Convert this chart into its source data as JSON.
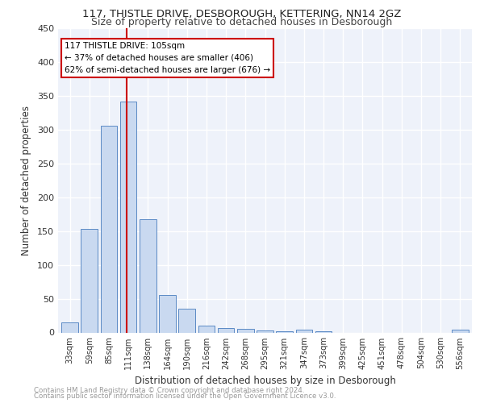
{
  "title1": "117, THISTLE DRIVE, DESBOROUGH, KETTERING, NN14 2GZ",
  "title2": "Size of property relative to detached houses in Desborough",
  "xlabel": "Distribution of detached houses by size in Desborough",
  "ylabel": "Number of detached properties",
  "footer1": "Contains HM Land Registry data © Crown copyright and database right 2024.",
  "footer2": "Contains public sector information licensed under the Open Government Licence v3.0.",
  "bar_labels": [
    "33sqm",
    "59sqm",
    "85sqm",
    "111sqm",
    "138sqm",
    "164sqm",
    "190sqm",
    "216sqm",
    "242sqm",
    "268sqm",
    "295sqm",
    "321sqm",
    "347sqm",
    "373sqm",
    "399sqm",
    "425sqm",
    "451sqm",
    "478sqm",
    "504sqm",
    "530sqm",
    "556sqm"
  ],
  "bar_values": [
    15,
    153,
    306,
    341,
    168,
    56,
    35,
    10,
    7,
    5,
    3,
    2,
    4,
    2,
    0,
    0,
    0,
    0,
    0,
    0,
    4
  ],
  "bar_color": "#c9d9f0",
  "bar_edge_color": "#5b8ac5",
  "vline_x": 2.93,
  "vline_color": "#cc0000",
  "annotation_title": "117 THISTLE DRIVE: 105sqm",
  "annotation_line1": "← 37% of detached houses are smaller (406)",
  "annotation_line2": "62% of semi-detached houses are larger (676) →",
  "annotation_box_color": "#cc0000",
  "annotation_text_color": "#000000",
  "ylim": [
    0,
    450
  ],
  "yticks": [
    0,
    50,
    100,
    150,
    200,
    250,
    300,
    350,
    400,
    450
  ],
  "background_color": "#eef2fa",
  "grid_color": "#ffffff",
  "fig_width": 6.0,
  "fig_height": 5.0
}
